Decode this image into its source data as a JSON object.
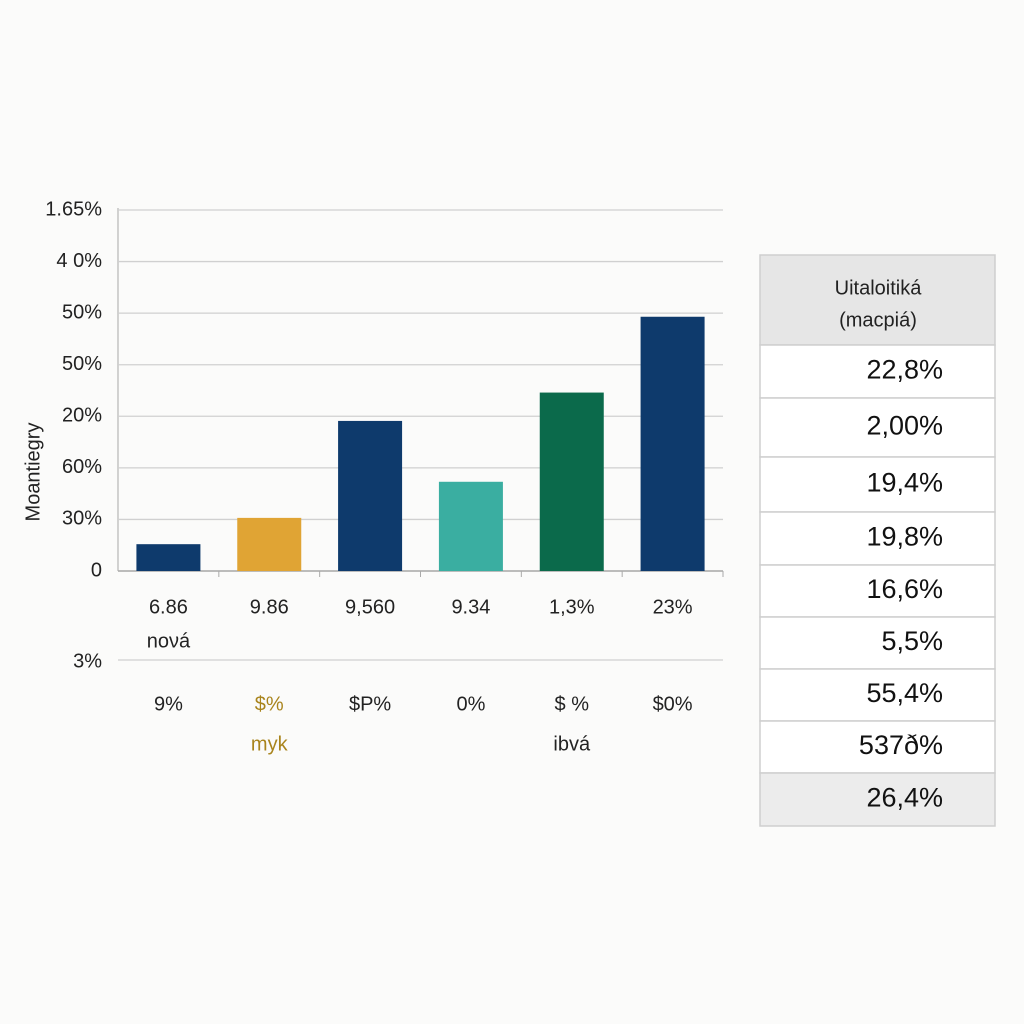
{
  "chart_data": {
    "type": "bar",
    "y_label": "Moantiegry",
    "categories": [
      "6.86",
      "9.86",
      "9,560",
      "9.34",
      "1,3%",
      "23%"
    ],
    "sub_labels": [
      "noνá",
      null,
      null,
      null,
      null,
      null
    ],
    "values": [
      0.52,
      1.03,
      2.91,
      1.73,
      3.46,
      4.93
    ],
    "colors": [
      "#0e3a6c",
      "#e0a434",
      "#0e3a6c",
      "#3aaea1",
      "#0b6a4b",
      "#0e3a6c"
    ],
    "ylim": [
      0,
      7
    ],
    "yticks": [
      0,
      {
        "value": 1,
        "label": "30%"
      },
      {
        "value": 2,
        "label": "60%"
      },
      {
        "value": 3,
        "label": "20%"
      },
      {
        "value": 4,
        "label": "50%"
      },
      {
        "value": 5,
        "label": "50%"
      },
      {
        "value": 6,
        "label": "4 0%"
      },
      {
        "value": 7,
        "label": "1.65%"
      }
    ],
    "grid": true,
    "lower_axis_label": "3%",
    "footer_labels": [
      "9%",
      "$%",
      "$P%",
      "0%",
      "$ %",
      "$0%"
    ],
    "footer_colors": [
      "#222222",
      "#a9841c",
      "#222222",
      "#222222",
      "#222222",
      "#222222"
    ],
    "footer_notes": [
      null,
      "myk",
      null,
      null,
      "ibvá",
      null
    ],
    "footer_note_colors": [
      "#222222",
      "#a9841c",
      "#222222",
      "#222222",
      "#222222",
      "#222222"
    ]
  },
  "table": {
    "header": [
      "Uitaloitiká",
      "(macpiá)"
    ],
    "rows": [
      "22,8%",
      "2,00%",
      "19,4%",
      "19,8%",
      "16,6%",
      "5,5%",
      "55,4%",
      "537ð%",
      "26,4%"
    ]
  }
}
